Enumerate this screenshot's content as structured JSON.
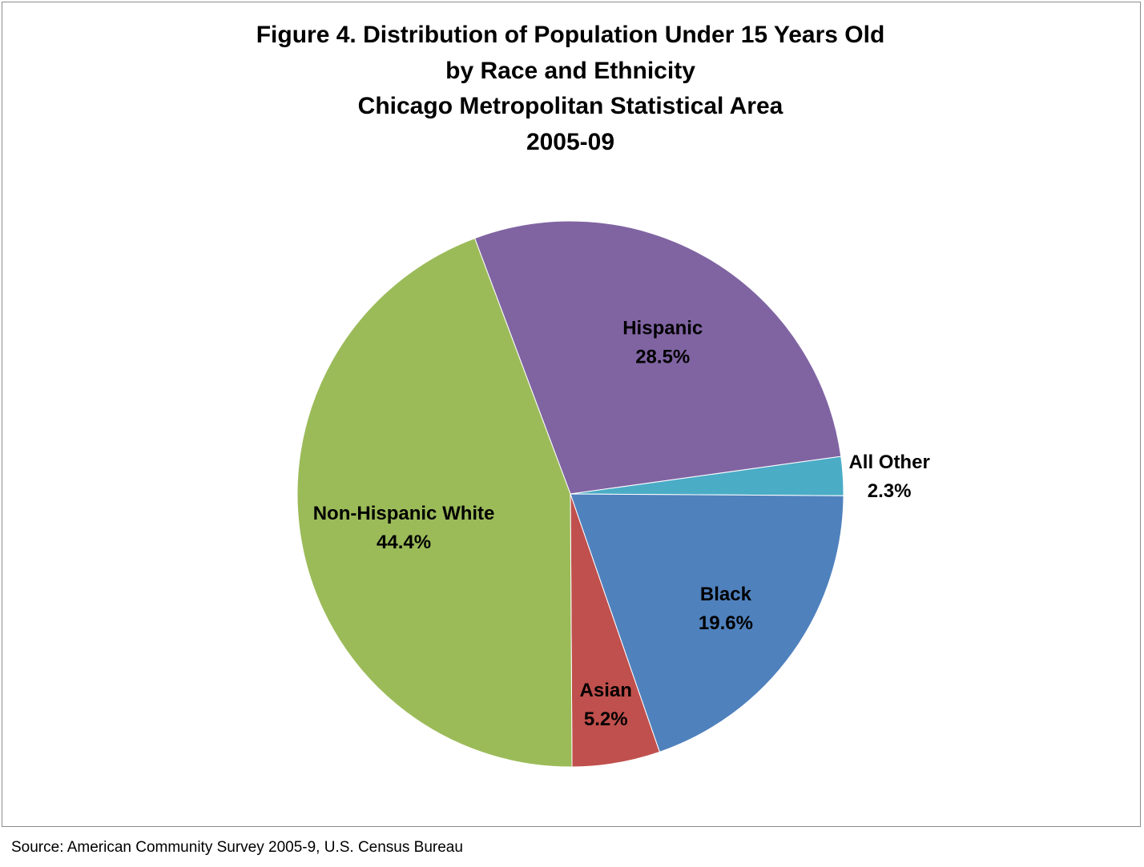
{
  "chart_data": {
    "type": "pie",
    "title_lines": [
      "Figure 4. Distribution of Population Under 15 Years Old",
      "by Race and Ethnicity",
      "Chicago Metropolitan Statistical Area",
      "2005-09"
    ],
    "categories": [
      "Hispanic",
      "All Other",
      "Black",
      "Asian",
      "Non-Hispanic White"
    ],
    "values": [
      28.5,
      2.3,
      19.6,
      5.2,
      44.4
    ],
    "value_labels": [
      "28.5%",
      "2.3%",
      "19.6%",
      "5.2%",
      "44.4%"
    ],
    "colors": [
      "#8064A2",
      "#4BACC6",
      "#4F81BD",
      "#C0504D",
      "#9BBB59"
    ],
    "start_angle_deg": -20.5,
    "direction": "clockwise",
    "legend": "none"
  },
  "source": "Source: American Community Survey 2005-9, U.S. Census Bureau"
}
